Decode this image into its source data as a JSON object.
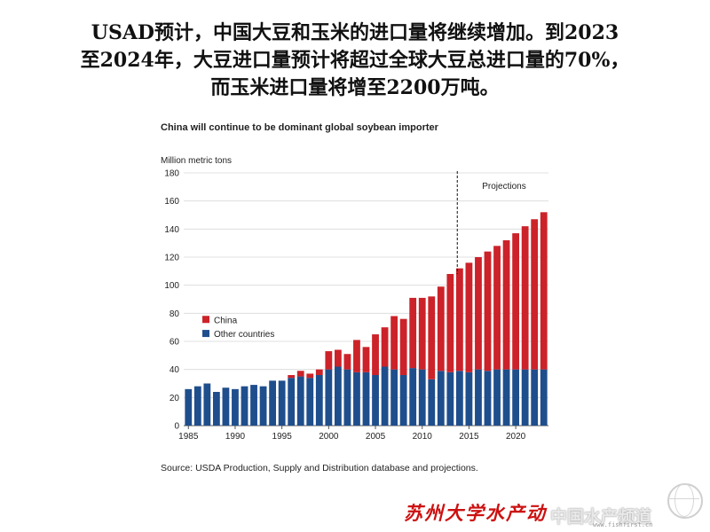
{
  "headline": {
    "line1": "USAD预计，中国大豆和玉米的进口量将继续增加。到2023",
    "line2": "至2024年，大豆进口量预计将超过全球大豆总进口量的70%，",
    "line3": "而玉米进口量将增至2200万吨。"
  },
  "footer": {
    "brand": "苏州大学水产动",
    "watermark": "中国水产频道",
    "watermark_url": "www.fishfirst.cn"
  },
  "chart_data": {
    "type": "bar",
    "stacked": true,
    "title": "China will continue to be dominant global soybean importer",
    "ylabel": "Million metric tons",
    "source": "Source: USDA Production, Supply and Distribution database and projections.",
    "projections_label": "Projections",
    "projection_start": 2014,
    "ylim": [
      0,
      180
    ],
    "yticks": [
      0,
      20,
      40,
      60,
      80,
      100,
      120,
      140,
      160,
      180
    ],
    "xticks": [
      1985,
      1990,
      1995,
      2000,
      2005,
      2010,
      2015,
      2020
    ],
    "legend_position": "middle-left",
    "grid": true,
    "x": [
      1985,
      1986,
      1987,
      1988,
      1989,
      1990,
      1991,
      1992,
      1993,
      1994,
      1995,
      1996,
      1997,
      1998,
      1999,
      2000,
      2001,
      2002,
      2003,
      2004,
      2005,
      2006,
      2007,
      2008,
      2009,
      2010,
      2011,
      2012,
      2013,
      2014,
      2015,
      2016,
      2017,
      2018,
      2019,
      2020,
      2021,
      2022,
      2023
    ],
    "series": [
      {
        "name": "Other countries",
        "color": "#1f4e8c",
        "values": [
          26,
          28,
          30,
          24,
          27,
          26,
          28,
          29,
          28,
          32,
          32,
          34,
          35,
          34,
          36,
          40,
          42,
          40,
          38,
          38,
          36,
          42,
          40,
          36,
          41,
          40,
          33,
          39,
          38,
          39,
          38,
          40,
          39,
          40,
          40,
          40,
          40,
          40,
          40
        ]
      },
      {
        "name": "China",
        "color": "#cc2229",
        "values": [
          0,
          0,
          0,
          0,
          0,
          0,
          0,
          0,
          0,
          0,
          0,
          2,
          4,
          3,
          4,
          13,
          12,
          11,
          23,
          18,
          29,
          28,
          38,
          40,
          50,
          51,
          59,
          60,
          70,
          73,
          78,
          80,
          85,
          88,
          92,
          97,
          102,
          107,
          112
        ]
      }
    ]
  }
}
